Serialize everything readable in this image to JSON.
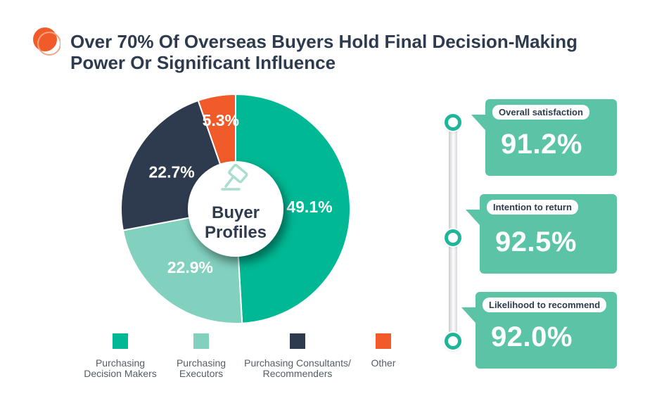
{
  "title": "Over 70% Of Overseas Buyers Hold Final Decision-Making\nPower Or Significant Influence",
  "colors": {
    "decision_makers": "#00b894",
    "executors": "#82d1bf",
    "consultants": "#2e3b4e",
    "other": "#f15a29",
    "card": "#5cc4a6",
    "title": "#2e3b4e"
  },
  "center_icon": "gavel-icon",
  "chart_data": {
    "type": "pie",
    "style": "donut",
    "center_label": "Buyer\nProfiles",
    "slices": [
      {
        "label": "Purchasing\nDecision Makers",
        "value": 49.1,
        "display": "49.1%"
      },
      {
        "label": "Purchasing\nExecutors",
        "value": 22.9,
        "display": "22.9%"
      },
      {
        "label": "Purchasing Consultants/\nRecommenders",
        "value": 22.7,
        "display": "22.7%"
      },
      {
        "label": "Other",
        "value": 5.3,
        "display": "5.3%"
      }
    ],
    "legend_placement": "bottom"
  },
  "metrics": [
    {
      "label": "Overall satisfaction",
      "value": "91.2%"
    },
    {
      "label": "Intention to return",
      "value": "92.5%"
    },
    {
      "label": "Likelihood to recommend",
      "value": "92.0%"
    }
  ]
}
